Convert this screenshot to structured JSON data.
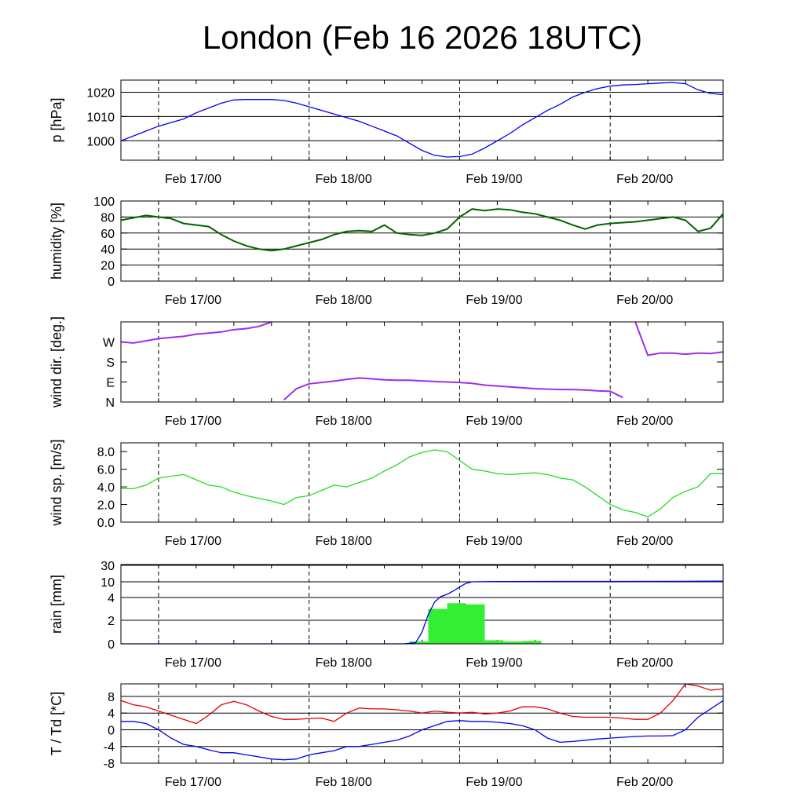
{
  "title": "London (Feb 16 2026 18UTC)",
  "colors": {
    "pressure": "#0000ee",
    "humidity": "#006400",
    "wind_dir": "#9a30e8",
    "wind_speed": "#22dd22",
    "rain_bar": "#33ee33",
    "rain_accum": "#0000ee",
    "temperature": "#e00000",
    "dewpoint": "#0000ee"
  },
  "chart_data": [
    {
      "type": "line",
      "ylabel": "p [hPa]",
      "x_range": [
        0,
        96
      ],
      "x_ticks": [
        6,
        30,
        54,
        78
      ],
      "x_tick_labels": [
        "Feb 17/00",
        "Feb 18/00",
        "Feb 19/00",
        "Feb 20/00"
      ],
      "ylim": [
        992,
        1025
      ],
      "y_ticks": [
        1000,
        1010,
        1020
      ],
      "y_tick_labels": [
        "1000",
        "1010",
        "1020"
      ],
      "grid_y": true,
      "series": [
        {
          "color_key": "pressure",
          "x": [
            0,
            2,
            4,
            6,
            8,
            10,
            12,
            14,
            16,
            18,
            20,
            22,
            24,
            26,
            28,
            30,
            32,
            34,
            36,
            38,
            40,
            42,
            44,
            46,
            48,
            50,
            52,
            54,
            56,
            58,
            60,
            62,
            64,
            66,
            68,
            70,
            72,
            74,
            76,
            78,
            80,
            82,
            84,
            86,
            88,
            90,
            92,
            94,
            96
          ],
          "y": [
            1000,
            1002,
            1004,
            1006,
            1007.5,
            1009,
            1011.5,
            1013.5,
            1015.5,
            1016.8,
            1017,
            1017,
            1017,
            1016.6,
            1015.5,
            1014,
            1012.5,
            1011,
            1009.5,
            1008,
            1006,
            1004,
            1002,
            999,
            996,
            994,
            993.3,
            993.5,
            994.5,
            997,
            1000,
            1003,
            1006.5,
            1009.5,
            1012.5,
            1015,
            1018,
            1020,
            1021.5,
            1022.5,
            1023,
            1023.2,
            1023.5,
            1023.8,
            1024,
            1023.5,
            1021,
            1019.5,
            1019
          ]
        }
      ]
    },
    {
      "type": "line",
      "ylabel": "humidity [%]",
      "x_range": [
        0,
        96
      ],
      "x_ticks": [
        6,
        30,
        54,
        78
      ],
      "x_tick_labels": [
        "Feb 17/00",
        "Feb 18/00",
        "Feb 19/00",
        "Feb 20/00"
      ],
      "ylim": [
        0,
        100
      ],
      "y_ticks": [
        0,
        20,
        40,
        60,
        80,
        100
      ],
      "y_tick_labels": [
        "0",
        "20",
        "40",
        "60",
        "80",
        "100"
      ],
      "grid_y": true,
      "series": [
        {
          "color_key": "humidity",
          "x": [
            0,
            2,
            4,
            6,
            8,
            10,
            12,
            14,
            16,
            18,
            20,
            22,
            24,
            26,
            28,
            30,
            32,
            34,
            36,
            38,
            40,
            42,
            44,
            46,
            48,
            50,
            52,
            54,
            56,
            58,
            60,
            62,
            64,
            66,
            68,
            70,
            72,
            74,
            76,
            78,
            80,
            82,
            84,
            86,
            88,
            90,
            92,
            94,
            96
          ],
          "y": [
            76,
            79,
            82,
            80,
            78,
            72,
            70,
            68,
            58,
            50,
            44,
            40,
            38,
            40,
            44,
            48,
            52,
            58,
            62,
            63,
            62,
            70,
            60,
            58,
            57,
            60,
            65,
            80,
            90,
            88,
            90,
            89,
            86,
            84,
            80,
            76,
            70,
            65,
            70,
            72,
            73,
            74,
            76,
            78,
            80,
            76,
            62,
            66,
            84
          ]
        }
      ]
    },
    {
      "type": "scatter",
      "ylabel": "wind dir. [deg.]",
      "x_range": [
        0,
        96
      ],
      "x_ticks": [
        6,
        30,
        54,
        78
      ],
      "x_tick_labels": [
        "Feb 17/00",
        "Feb 18/00",
        "Feb 19/00",
        "Feb 20/00"
      ],
      "ylim": [
        0,
        360
      ],
      "y_ticks": [
        0,
        90,
        180,
        270
      ],
      "y_tick_labels": [
        "N",
        "E",
        "S",
        "W"
      ],
      "grid_y": false,
      "series": [
        {
          "color_key": "wind_dir",
          "x": [
            0,
            2,
            4,
            6,
            8,
            10,
            12,
            14,
            16,
            18,
            20,
            22,
            24,
            26,
            28,
            30,
            32,
            34,
            36,
            38,
            40,
            42,
            44,
            46,
            48,
            50,
            52,
            54,
            56,
            58,
            60,
            62,
            64,
            66,
            68,
            70,
            72,
            74,
            76,
            78,
            80,
            82,
            84,
            86,
            88,
            90,
            92,
            94,
            96
          ],
          "y": [
            270,
            265,
            275,
            285,
            290,
            295,
            305,
            310,
            315,
            325,
            330,
            340,
            360,
            10,
            60,
            82,
            88,
            94,
            102,
            108,
            104,
            100,
            98,
            98,
            95,
            92,
            90,
            88,
            84,
            76,
            72,
            68,
            64,
            60,
            58,
            56,
            56,
            54,
            50,
            48,
            20,
            360,
            210,
            220,
            220,
            215,
            220,
            218,
            225
          ]
        }
      ]
    },
    {
      "type": "line",
      "ylabel": "wind sp. [m/s]",
      "x_range": [
        0,
        96
      ],
      "x_ticks": [
        6,
        30,
        54,
        78
      ],
      "x_tick_labels": [
        "Feb 17/00",
        "Feb 18/00",
        "Feb 19/00",
        "Feb 20/00"
      ],
      "ylim": [
        0,
        9
      ],
      "y_ticks": [
        0,
        2,
        4,
        6,
        8
      ],
      "y_tick_labels": [
        "0.0",
        "2.0",
        "4.0",
        "6.0",
        "8.0"
      ],
      "grid_y": false,
      "series": [
        {
          "color_key": "wind_speed",
          "x": [
            0,
            2,
            4,
            6,
            8,
            10,
            12,
            14,
            16,
            18,
            20,
            22,
            24,
            26,
            28,
            30,
            32,
            34,
            36,
            38,
            40,
            42,
            44,
            46,
            48,
            50,
            52,
            54,
            56,
            58,
            60,
            62,
            64,
            66,
            68,
            70,
            72,
            74,
            76,
            78,
            80,
            82,
            84,
            86,
            88,
            90,
            92,
            94,
            96
          ],
          "y": [
            3.8,
            3.8,
            4.2,
            5.0,
            5.2,
            5.4,
            4.8,
            4.2,
            4.0,
            3.4,
            3.0,
            2.7,
            2.4,
            2.0,
            2.8,
            3.0,
            3.6,
            4.2,
            4.0,
            4.5,
            5.0,
            5.8,
            6.5,
            7.4,
            7.9,
            8.2,
            8.0,
            7.0,
            6.0,
            5.8,
            5.5,
            5.4,
            5.5,
            5.6,
            5.4,
            5.0,
            4.8,
            4.0,
            3.0,
            2.0,
            1.4,
            1.1,
            0.6,
            1.5,
            2.8,
            3.5,
            4.0,
            5.5,
            5.5
          ]
        }
      ]
    },
    {
      "type": "bar",
      "ylabel": "rain [mm]",
      "x_range": [
        0,
        96
      ],
      "x_ticks": [
        6,
        30,
        54,
        78
      ],
      "x_tick_labels": [
        "Feb 17/00",
        "Feb 18/00",
        "Feb 19/00",
        "Feb 20/00"
      ],
      "y_ticks": [
        0,
        2,
        4,
        10,
        30
      ],
      "y_tick_labels": [
        "0",
        "2",
        "4",
        "10",
        "30"
      ],
      "y_scale": "nonlinear",
      "grid_y": true,
      "series": [
        {
          "name": "",
          "color_key": "rain_bar",
          "kind": "bar",
          "x_start": [
            46,
            49,
            52,
            55,
            58,
            61,
            64
          ],
          "x_end": [
            49,
            52,
            55,
            58,
            61,
            64,
            67
          ],
          "values": [
            0.2,
            3.0,
            3.5,
            3.4,
            0.3,
            0.2,
            0.25
          ]
        },
        {
          "name": "",
          "color_key": "rain_accum",
          "kind": "line",
          "x": [
            0,
            45,
            47,
            48,
            49,
            50,
            51,
            52,
            53,
            54,
            55,
            56,
            58,
            62,
            70,
            80,
            90,
            96
          ],
          "y": [
            0,
            0,
            0.1,
            1.0,
            2.5,
            3.6,
            4.4,
            5.2,
            6.5,
            8.0,
            9.4,
            10.0,
            10.2,
            10.4,
            10.5,
            10.5,
            10.6,
            10.8
          ]
        }
      ]
    },
    {
      "type": "line",
      "ylabel": "T / Td [*C]",
      "x_range": [
        0,
        96
      ],
      "x_ticks": [
        6,
        30,
        54,
        78
      ],
      "x_tick_labels": [
        "Feb 17/00",
        "Feb 18/00",
        "Feb 19/00",
        "Feb 20/00"
      ],
      "ylim": [
        -8,
        11
      ],
      "y_ticks": [
        -8,
        -4,
        0,
        4,
        8
      ],
      "y_tick_labels": [
        "-8",
        "-4",
        "0",
        "4",
        "8"
      ],
      "grid_y": true,
      "series": [
        {
          "name": "",
          "color_key": "temperature",
          "x": [
            0,
            2,
            4,
            6,
            8,
            10,
            12,
            14,
            16,
            18,
            20,
            22,
            24,
            26,
            28,
            30,
            32,
            34,
            36,
            38,
            40,
            42,
            44,
            46,
            48,
            50,
            52,
            54,
            56,
            58,
            60,
            62,
            64,
            66,
            68,
            70,
            72,
            74,
            76,
            78,
            80,
            82,
            84,
            86,
            88,
            90,
            92,
            94,
            96
          ],
          "y": [
            7,
            6,
            5.5,
            4.5,
            3.5,
            2.5,
            1.5,
            3.5,
            6,
            6.8,
            6,
            4.5,
            3.2,
            2.5,
            2.5,
            2.7,
            2.8,
            2,
            4,
            5.2,
            5,
            5,
            4.8,
            4.5,
            4,
            4.5,
            4.2,
            4,
            4.2,
            3.8,
            4,
            4.5,
            5.5,
            5.5,
            5,
            4,
            3.2,
            3,
            3,
            3,
            2.8,
            2.5,
            2.5,
            4,
            7,
            11,
            10.5,
            9.5,
            9.8
          ]
        },
        {
          "name": "",
          "color_key": "dewpoint",
          "x": [
            0,
            2,
            4,
            6,
            8,
            10,
            12,
            14,
            16,
            18,
            20,
            22,
            24,
            26,
            28,
            30,
            32,
            34,
            36,
            38,
            40,
            42,
            44,
            46,
            48,
            50,
            52,
            54,
            56,
            58,
            60,
            62,
            64,
            66,
            68,
            70,
            72,
            74,
            76,
            78,
            80,
            82,
            84,
            86,
            88,
            90,
            92,
            94,
            96
          ],
          "y": [
            2,
            2,
            1.5,
            0,
            -2,
            -3.5,
            -4,
            -4.8,
            -5.5,
            -5.5,
            -6,
            -6.5,
            -7,
            -7.2,
            -7,
            -6,
            -5.5,
            -5,
            -4,
            -4,
            -3.5,
            -3,
            -2.5,
            -1.5,
            0,
            1,
            2,
            2.2,
            2,
            2,
            1.8,
            1.5,
            1,
            0,
            -2,
            -3,
            -2.8,
            -2.5,
            -2.2,
            -2,
            -1.8,
            -1.6,
            -1.5,
            -1.5,
            -1.4,
            0,
            3,
            5,
            7
          ]
        }
      ]
    }
  ]
}
